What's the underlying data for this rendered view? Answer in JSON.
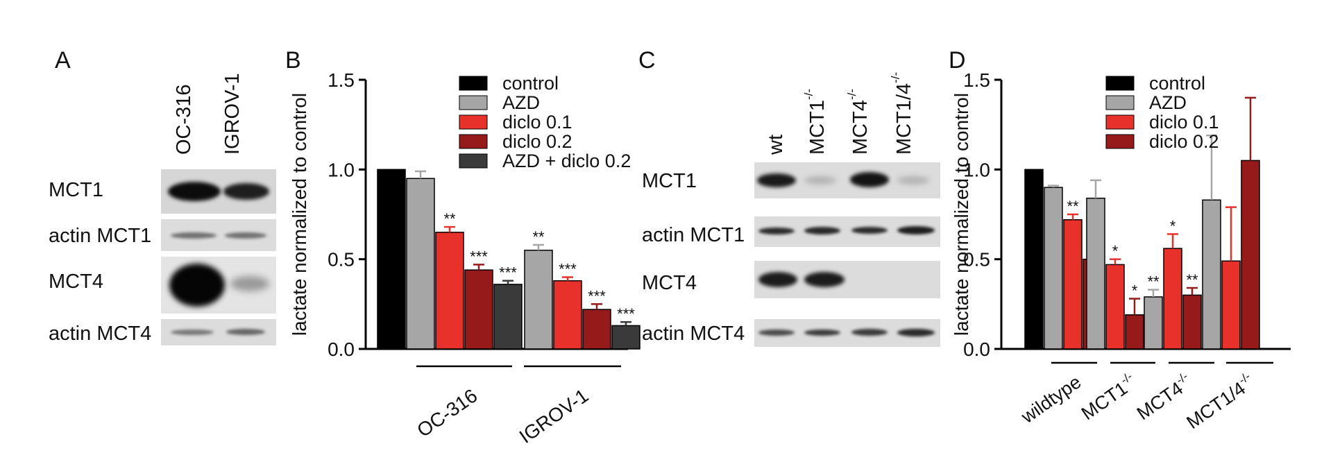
{
  "panels": {
    "A": {
      "letter": "A",
      "lanes": [
        "OC-316",
        "IGROV-1"
      ],
      "rows": [
        "MCT1",
        "actin MCT1",
        "MCT4",
        "actin MCT4"
      ]
    },
    "C": {
      "letter": "C",
      "lanes": [
        "wt",
        "MCT1",
        "MCT4",
        "MCT1/4"
      ],
      "lane_superscripts": [
        "",
        "-/-",
        "-/-",
        "-/-"
      ],
      "rows": [
        "MCT1",
        "actin MCT1",
        "MCT4",
        "actin MCT4"
      ]
    }
  },
  "chart_data": [
    {
      "panel": "B",
      "type": "bar",
      "ylabel": "lactate normalized to control",
      "ylim": [
        0,
        1.5
      ],
      "yticks": [
        "0.0",
        "0.5",
        "1.0",
        "1.5"
      ],
      "groups": [
        "OC-316",
        "IGROV-1"
      ],
      "legend_position": "top-right",
      "series": [
        {
          "name": "control",
          "color": "#000000",
          "values": [
            1.0,
            null
          ],
          "errors": [
            0,
            null
          ],
          "sig": [
            "",
            ""
          ]
        },
        {
          "name": "AZD",
          "color": "#a6a6a6",
          "values": [
            0.95,
            0.55
          ],
          "errors": [
            0.04,
            0.03
          ],
          "sig": [
            "",
            "**"
          ]
        },
        {
          "name": "diclo 0.1",
          "color": "#e8312a",
          "values": [
            0.65,
            0.38
          ],
          "errors": [
            0.03,
            0.02
          ],
          "sig": [
            "**",
            "***"
          ]
        },
        {
          "name": "diclo 0.2",
          "color": "#961a19",
          "values": [
            0.44,
            0.22
          ],
          "errors": [
            0.03,
            0.03
          ],
          "sig": [
            "***",
            "***"
          ]
        },
        {
          "name": "AZD + diclo 0.2",
          "color": "#3a3a3a",
          "values": [
            0.36,
            0.13
          ],
          "errors": [
            0.02,
            0.02
          ],
          "sig": [
            "***",
            "***"
          ]
        }
      ]
    },
    {
      "panel": "D",
      "type": "bar",
      "ylabel": "lactate normalized to control",
      "ylim": [
        0,
        1.5
      ],
      "yticks": [
        "0.0",
        "0.5",
        "1.0",
        "1.5"
      ],
      "groups": [
        "wildtype",
        "MCT1",
        "MCT4",
        "MCT1/4"
      ],
      "group_superscripts": [
        "",
        "-/-",
        "-/-",
        "-/-"
      ],
      "legend_position": "top-right",
      "series": [
        {
          "name": "control",
          "color": "#000000",
          "values": [
            1.0,
            null,
            null,
            null
          ],
          "errors": [
            0,
            null,
            null,
            null
          ],
          "sig": [
            "",
            "",
            "",
            ""
          ]
        },
        {
          "name": "AZD",
          "color": "#a6a6a6",
          "values": [
            0.9,
            0.84,
            0.29,
            0.83
          ],
          "errors": [
            0.01,
            0.1,
            0.04,
            0.36
          ],
          "sig": [
            "",
            "",
            "**",
            ""
          ]
        },
        {
          "name": "diclo 0.1",
          "color": "#e8312a",
          "values": [
            0.72,
            0.47,
            0.56,
            0.49
          ],
          "errors": [
            0.03,
            0.03,
            0.08,
            0.3
          ],
          "sig": [
            "**",
            "*",
            "*",
            ""
          ]
        },
        {
          "name": "diclo 0.2",
          "color": "#961a19",
          "values": [
            0.5,
            0.19,
            0.3,
            1.05
          ],
          "errors": [
            0.02,
            0.09,
            0.04,
            0.35
          ],
          "sig": [
            "*",
            "*",
            "**",
            ""
          ]
        }
      ]
    }
  ]
}
